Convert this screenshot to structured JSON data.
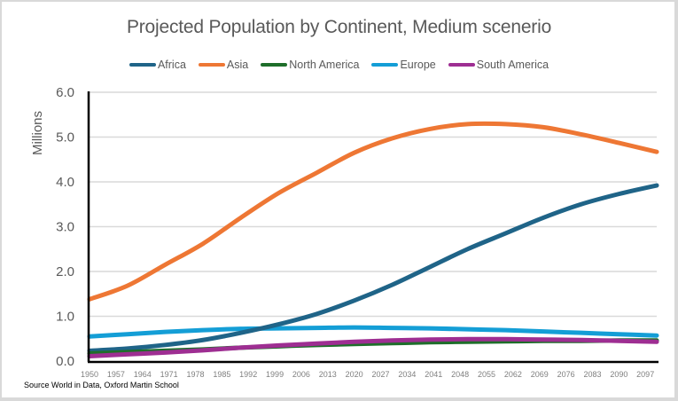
{
  "chart_data": {
    "type": "line",
    "title": "Projected Population by Continent, Medium scenerio",
    "xlabel": "",
    "ylabel": "Millions",
    "ylim": [
      0,
      6
    ],
    "yticks": [
      "0.0",
      "1.0",
      "2.0",
      "3.0",
      "4.0",
      "5.0",
      "6.0"
    ],
    "xlim": [
      1950,
      2100
    ],
    "xticks": [
      "1950",
      "1957",
      "1964",
      "1971",
      "1978",
      "1985",
      "1992",
      "1999",
      "2006",
      "2013",
      "2020",
      "2027",
      "2034",
      "2041",
      "2048",
      "2055",
      "2062",
      "2069",
      "2076",
      "2083",
      "2090",
      "2097"
    ],
    "grid": true,
    "legend_position": "top",
    "x": [
      1950,
      1960,
      1970,
      1980,
      1990,
      2000,
      2010,
      2020,
      2030,
      2040,
      2050,
      2060,
      2070,
      2080,
      2090,
      2100
    ],
    "series": [
      {
        "name": "Africa",
        "color": "#1f6488",
        "values": [
          0.23,
          0.28,
          0.36,
          0.47,
          0.63,
          0.82,
          1.05,
          1.35,
          1.7,
          2.1,
          2.5,
          2.85,
          3.2,
          3.5,
          3.73,
          3.92
        ]
      },
      {
        "name": "Asia",
        "color": "#ee7734",
        "values": [
          1.38,
          1.68,
          2.15,
          2.62,
          3.2,
          3.75,
          4.2,
          4.65,
          4.97,
          5.18,
          5.29,
          5.29,
          5.22,
          5.06,
          4.87,
          4.67
        ]
      },
      {
        "name": "North America",
        "color": "#1e6e2a",
        "values": [
          0.17,
          0.2,
          0.23,
          0.26,
          0.3,
          0.33,
          0.36,
          0.38,
          0.4,
          0.42,
          0.43,
          0.44,
          0.45,
          0.45,
          0.46,
          0.46
        ]
      },
      {
        "name": "Europe",
        "color": "#149ed6",
        "values": [
          0.55,
          0.6,
          0.65,
          0.69,
          0.72,
          0.73,
          0.74,
          0.75,
          0.74,
          0.73,
          0.71,
          0.69,
          0.66,
          0.63,
          0.6,
          0.57
        ]
      },
      {
        "name": "South America",
        "color": "#9e2e92",
        "values": [
          0.11,
          0.15,
          0.19,
          0.24,
          0.3,
          0.35,
          0.39,
          0.43,
          0.46,
          0.48,
          0.49,
          0.49,
          0.48,
          0.47,
          0.45,
          0.43
        ]
      }
    ],
    "annotations": [
      "Source World in Data, Oxford Martin School"
    ]
  },
  "source_note": "Source World in Data, Oxford Martin School"
}
